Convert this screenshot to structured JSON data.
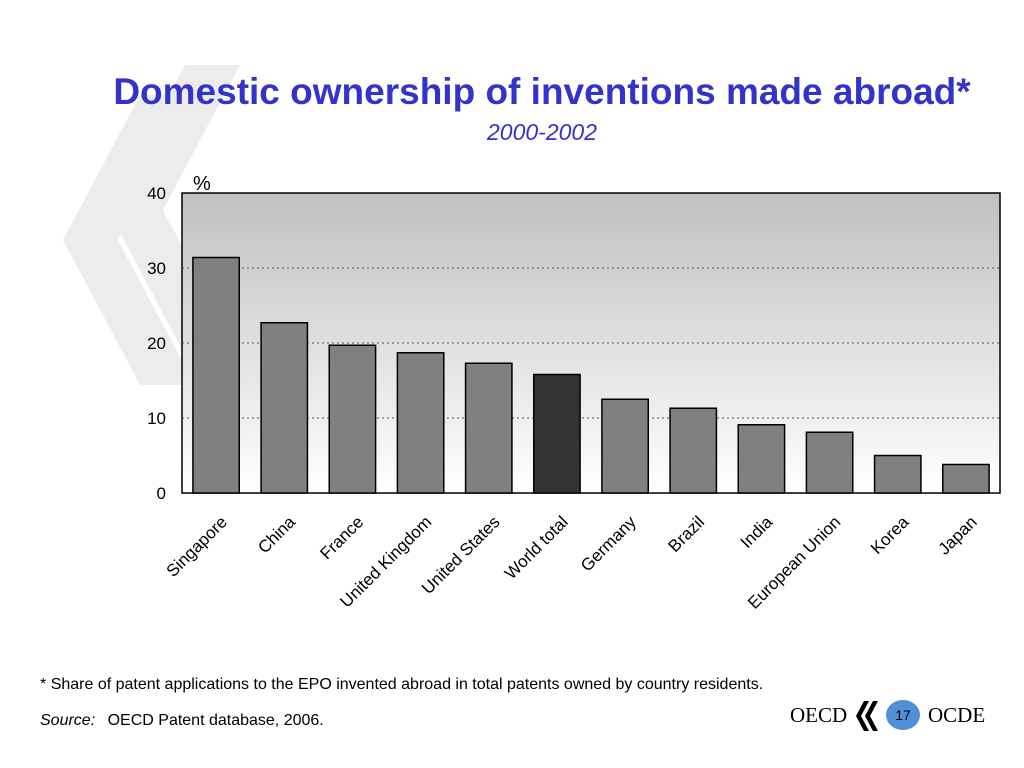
{
  "slide": {
    "title": "Domestic ownership of inventions made abroad*",
    "subtitle": "2000-2002",
    "footnote_marker": "*",
    "footnote_text": "Share of patent applications to the EPO invented abroad in total patents owned by country residents.",
    "source_label": "Source:",
    "source_text": "OECD Patent database, 2006.",
    "logo_left": "OECD",
    "logo_right": "OCDE",
    "page_number": "17"
  },
  "colors": {
    "title": "#3333cc",
    "bar_default": "#808080",
    "bar_highlight": "#333333",
    "plot_gradient_top": "#c0c0c0",
    "plot_gradient_bottom": "#ffffff",
    "page_badge": "#4f8fd6"
  },
  "chart_data": {
    "type": "bar",
    "title": "Domestic ownership of inventions made abroad*",
    "subtitle": "2000-2002",
    "ylabel": "%",
    "ylim": [
      0,
      40
    ],
    "yticks": [
      0,
      10,
      20,
      30,
      40
    ],
    "grid": true,
    "categories": [
      "Singapore",
      "China",
      "France",
      "United Kingdom",
      "United States",
      "World total",
      "Germany",
      "Brazil",
      "India",
      "European Union",
      "Korea",
      "Japan"
    ],
    "values": [
      31.4,
      22.7,
      19.7,
      18.7,
      17.3,
      15.8,
      12.5,
      11.3,
      9.1,
      8.1,
      5.0,
      3.8
    ],
    "highlight_category": "World total"
  }
}
